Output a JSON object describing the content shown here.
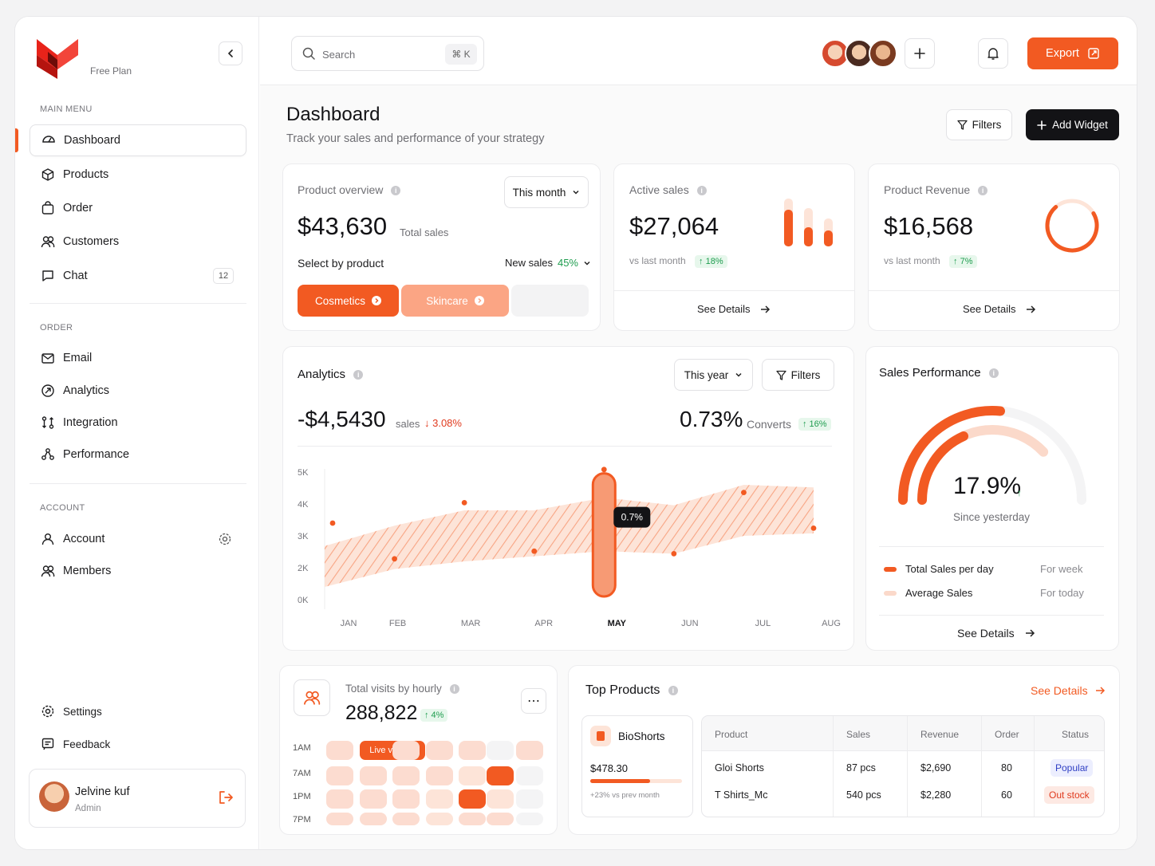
{
  "brand": {
    "plan": "Free Plan"
  },
  "sidebar": {
    "main_menu_label": "MAIN MENU",
    "main_items": [
      {
        "label": "Dashboard",
        "icon": "dashboard-icon"
      },
      {
        "label": "Products",
        "icon": "box-icon"
      },
      {
        "label": "Order",
        "icon": "bag-icon"
      },
      {
        "label": "Customers",
        "icon": "users-icon"
      },
      {
        "label": "Chat",
        "icon": "chat-icon",
        "badge": "12"
      }
    ],
    "order_label": "ORDER",
    "order_items": [
      {
        "label": "Email",
        "icon": "mail-icon"
      },
      {
        "label": "Analytics",
        "icon": "analytics-icon"
      },
      {
        "label": "Integration",
        "icon": "integration-icon"
      },
      {
        "label": "Performance",
        "icon": "performance-icon"
      }
    ],
    "account_label": "ACCOUNT",
    "account_items": [
      {
        "label": "Account",
        "icon": "user-icon"
      },
      {
        "label": "Members",
        "icon": "users-icon"
      }
    ],
    "bottom_items": [
      {
        "label": "Settings",
        "icon": "gear-icon"
      },
      {
        "label": "Feedback",
        "icon": "feedback-icon"
      }
    ],
    "user": {
      "name": "Jelvine kuf",
      "role": "Admin"
    }
  },
  "topbar": {
    "search_placeholder": "Search",
    "shortcut": "⌘ K",
    "export_label": "Export"
  },
  "header": {
    "title": "Dashboard",
    "subtitle": "Track your sales and performance of your strategy",
    "filters_label": "Filters",
    "add_widget_label": "Add Widget"
  },
  "product_overview": {
    "title": "Product overview",
    "period": "This month",
    "amount": "$43,630",
    "amount_label": "Total sales",
    "select_label": "Select by product",
    "new_sales_label": "New sales",
    "new_sales_pct": "45%",
    "chips": [
      "Cosmetics",
      "Skincare"
    ]
  },
  "active_sales": {
    "title": "Active sales",
    "amount": "$27,064",
    "vs": "vs last month",
    "change": "↑ 18%",
    "details": "See Details"
  },
  "product_revenue": {
    "title": "Product Revenue",
    "amount": "$16,568",
    "vs": "vs last month",
    "change": "↑ 7%",
    "details": "See Details"
  },
  "analytics": {
    "title": "Analytics",
    "period": "This year",
    "filters": "Filters",
    "amount": "-$4,5430",
    "amount_label": "sales",
    "change": "↓ 3.08%",
    "convert_pct": "0.73%",
    "convert_label": "Converts",
    "convert_change": "↑ 16%",
    "tooltip": "0.7%"
  },
  "chart_data": {
    "type": "area",
    "categories": [
      "JAN",
      "FEB",
      "MAR",
      "APR",
      "MAY",
      "JUN",
      "JUL",
      "AUG"
    ],
    "y_ticks": [
      "5K",
      "4K",
      "3K",
      "2K",
      "0K"
    ],
    "ylim": [
      0,
      5000
    ],
    "band_upper": [
      2100,
      2900,
      3500,
      3500,
      4000,
      3700,
      4500,
      4400
    ],
    "band_lower": [
      500,
      1200,
      1500,
      1700,
      1900,
      1800,
      2500,
      2600
    ],
    "points": [
      {
        "x": "JAN",
        "y": 3000
      },
      {
        "x": "FEB",
        "y": 1600
      },
      {
        "x": "MAR",
        "y": 3800
      },
      {
        "x": "APR",
        "y": 1900
      },
      {
        "x": "MAY",
        "y": 5100
      },
      {
        "x": "JUN",
        "y": 1800
      },
      {
        "x": "JUL",
        "y": 4200
      },
      {
        "x": "AUG",
        "y": 2800
      }
    ],
    "highlight": "MAY",
    "highlight_label": "0.7%"
  },
  "sales_performance": {
    "title": "Sales Performance",
    "value": "17.9%",
    "since": "Since yesterday",
    "legend": [
      {
        "label": "Total Sales per day",
        "period": "For week",
        "color": "#f25a22"
      },
      {
        "label": "Average Sales",
        "period": "For today",
        "color": "#fbd9ca"
      }
    ],
    "details": "See Details"
  },
  "visits": {
    "title": "Total visits by hourly",
    "value": "288,822",
    "change": "↑ 4%",
    "rows": [
      "1AM",
      "7AM",
      "1PM",
      "7PM"
    ],
    "live_label": "Live visitors"
  },
  "top_products": {
    "title": "Top Products",
    "see_details": "See Details",
    "featured": {
      "name": "BioShorts",
      "price": "$478.30",
      "progress": 0.65,
      "note": "+23% vs prev month"
    },
    "columns": [
      "Product",
      "Sales",
      "Revenue",
      "Order",
      "Status"
    ],
    "rows": [
      {
        "product": "Gloi Shorts",
        "sales": "87 pcs",
        "revenue": "$2,690",
        "order": "80",
        "status": "Popular"
      },
      {
        "product": "T Shirts_Mc",
        "sales": "540 pcs",
        "revenue": "$2,280",
        "order": "60",
        "status": "Out stock"
      }
    ]
  },
  "colors": {
    "accent": "#f25a22",
    "dark": "#131316",
    "soft": "#fde4d8"
  }
}
